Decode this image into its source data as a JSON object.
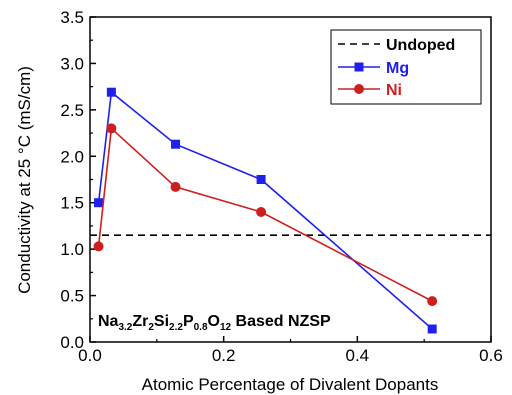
{
  "chart_data": {
    "type": "line",
    "xlabel": "Atomic Percentage of Divalent Dopants",
    "ylabel": "Conductivity at 25 °C (mS/cm)",
    "xlim": [
      0.0,
      0.6
    ],
    "ylim": [
      0.0,
      3.5
    ],
    "xticks": [
      "0.0",
      "0.2",
      "0.4",
      "0.6"
    ],
    "yticks": [
      "0.0",
      "0.5",
      "1.0",
      "1.5",
      "2.0",
      "2.5",
      "3.0",
      "3.5"
    ],
    "grid": false,
    "legend_position": "top-right",
    "series": [
      {
        "name": "Mg",
        "color": "#2020ee",
        "marker": "square",
        "x": [
          0.0128,
          0.032,
          0.128,
          0.256,
          0.512
        ],
        "y": [
          1.5,
          2.69,
          2.13,
          1.75,
          0.14
        ]
      },
      {
        "name": "Ni",
        "color": "#cc2020",
        "marker": "circle",
        "x": [
          0.0128,
          0.032,
          0.128,
          0.256,
          0.512
        ],
        "y": [
          1.03,
          2.3,
          1.67,
          1.4,
          0.44
        ]
      }
    ],
    "reference_line": {
      "name": "Undoped",
      "y": 1.15,
      "color": "#000000",
      "style": "dashed"
    },
    "annotation": {
      "parts": [
        {
          "t": "Na",
          "sub": false
        },
        {
          "t": "3.2",
          "sub": true
        },
        {
          "t": "Zr",
          "sub": false
        },
        {
          "t": "2",
          "sub": true
        },
        {
          "t": "Si",
          "sub": false
        },
        {
          "t": "2.2",
          "sub": true
        },
        {
          "t": "P",
          "sub": false
        },
        {
          "t": "0.8",
          "sub": true
        },
        {
          "t": "O",
          "sub": false
        },
        {
          "t": "12",
          "sub": true
        },
        {
          "t": " Based NZSP",
          "sub": false
        }
      ]
    }
  }
}
